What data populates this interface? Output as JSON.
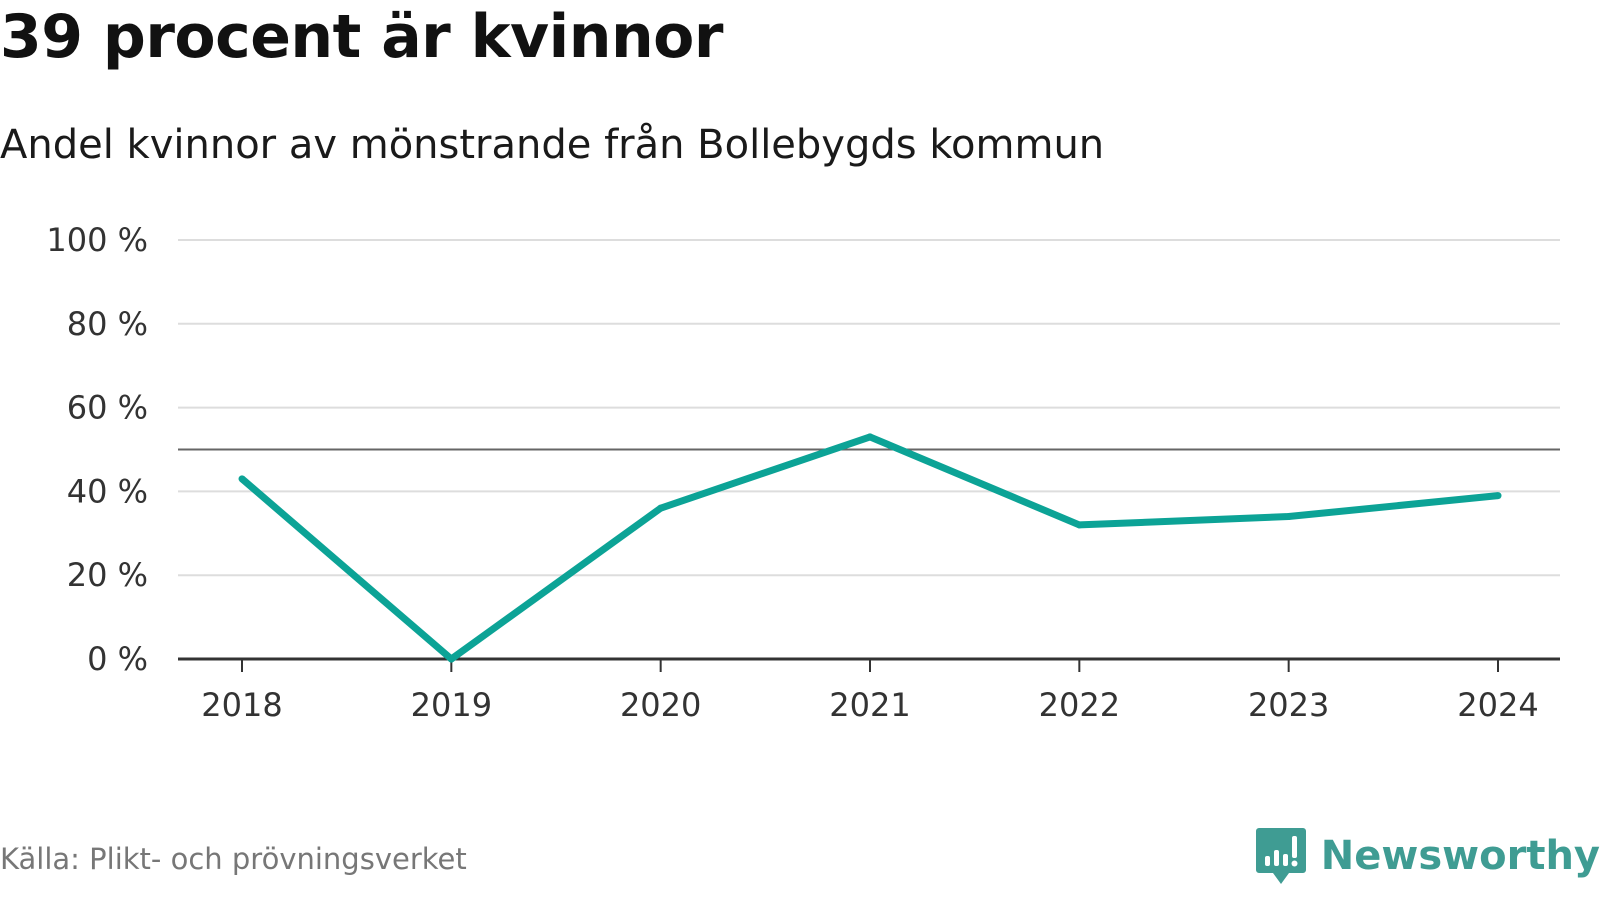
{
  "chart_data": {
    "type": "line",
    "title": "39 procent är kvinnor",
    "subtitle": "Andel kvinnor av mönstrande från Bollebygds kommun",
    "categories": [
      "2018",
      "2019",
      "2020",
      "2021",
      "2022",
      "2023",
      "2024"
    ],
    "series": [
      {
        "values": [
          43,
          0,
          36,
          53,
          32,
          34,
          39
        ]
      }
    ],
    "reference_line": 50,
    "ylim": [
      0,
      100
    ],
    "yticks": [
      0,
      20,
      40,
      60,
      80,
      100
    ],
    "ytick_labels": [
      "0 %",
      "20 %",
      "40 %",
      "60 %",
      "80 %",
      "100 %"
    ],
    "grid": true,
    "line_color": "#0ca396",
    "grid_color": "#dddddd",
    "reference_line_color": "#666666",
    "axis_color": "#333333"
  },
  "footer": {
    "source": "Källa: Plikt- och prövningsverket",
    "brand": "Newsworthy",
    "brand_color": "#3f9c93",
    "brand_icon": "newsworthy-logo-icon"
  }
}
